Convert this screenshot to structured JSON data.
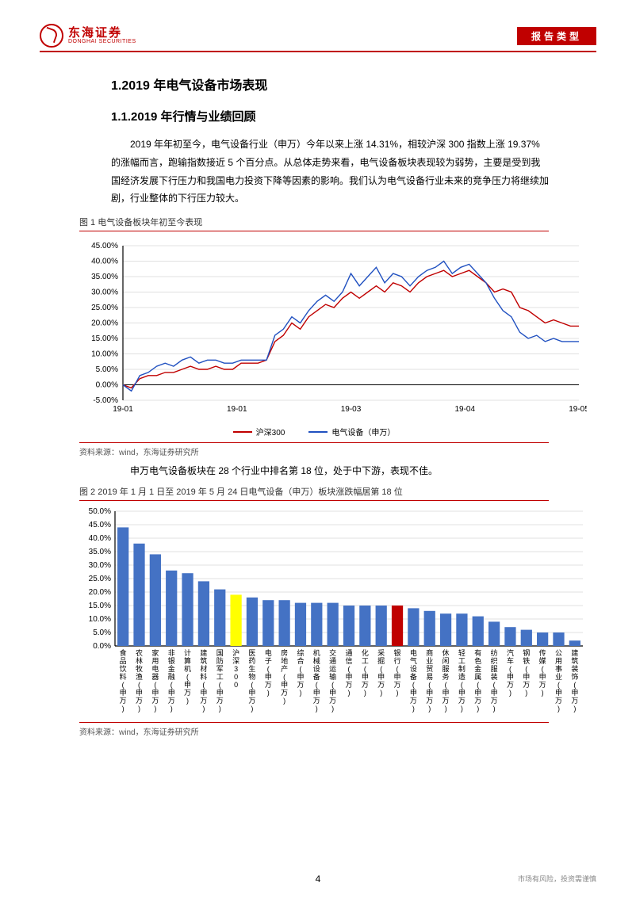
{
  "header": {
    "logo_cn": "东海证券",
    "logo_en": "DONGHAI SECURITIES",
    "report_type": "报告类型"
  },
  "section": {
    "h1": "1.2019 年电气设备市场表现",
    "h2": "1.1.2019 年行情与业绩回顾",
    "para1": "2019 年年初至今，电气设备行业（申万）今年以来上涨 14.31%，相较沪深 300 指数上涨 19.37%的涨幅而言，跑输指数接近 5 个百分点。从总体走势来看，电气设备板块表现较为弱势，主要是受到我国经济发展下行压力和我国电力投资下降等因素的影响。我们认为电气设备行业未来的竞争压力将继续加剧，行业整体的下行压力较大。"
  },
  "fig1": {
    "title": "图 1  电气设备板块年初至今表现",
    "source": "资料来源：wind，东海证券研究所",
    "type": "line",
    "xlabels": [
      "19-01",
      "19-01",
      "19-03",
      "19-04",
      "19-05"
    ],
    "ylim": [
      -5,
      45
    ],
    "ytick_step": 5,
    "ylabel_suffix": "%",
    "grid_color": "#e0e0e0",
    "background_color": "#ffffff",
    "series": [
      {
        "name": "沪深300",
        "color": "#c00000",
        "data": [
          0,
          -1,
          2,
          3,
          3,
          4,
          4,
          5,
          6,
          5,
          5,
          6,
          5,
          5,
          7,
          7,
          7,
          8,
          14,
          16,
          20,
          18,
          22,
          24,
          26,
          25,
          28,
          30,
          28,
          30,
          32,
          30,
          33,
          32,
          30,
          33,
          35,
          36,
          37,
          35,
          36,
          37,
          35,
          33,
          30,
          31,
          30,
          25,
          24,
          22,
          20,
          21,
          20,
          19,
          19
        ]
      },
      {
        "name": "电气设备（申万）",
        "color": "#2050c0",
        "data": [
          0,
          -2,
          3,
          4,
          6,
          7,
          6,
          8,
          9,
          7,
          8,
          8,
          7,
          7,
          8,
          8,
          8,
          8,
          16,
          18,
          22,
          20,
          24,
          27,
          29,
          27,
          30,
          36,
          32,
          35,
          38,
          33,
          36,
          35,
          32,
          35,
          37,
          38,
          40,
          36,
          38,
          39,
          36,
          33,
          28,
          24,
          22,
          17,
          15,
          16,
          14,
          15,
          14,
          14,
          14
        ]
      }
    ]
  },
  "midtext": "申万电气设备板块在 28 个行业中排名第 18 位，处于中下游，表现不佳。",
  "fig2": {
    "title": "图 2  2019 年 1 月 1 日至 2019 年 5 月 24 日电气设备（申万）板块涨跌幅居第 18 位",
    "source": "资料来源：wind，东海证券研究所",
    "type": "bar",
    "ylim": [
      0,
      50
    ],
    "ytick_step": 5,
    "ylabel_suffix": "%",
    "default_color": "#4472c4",
    "highlight_colors": {
      "7": "#ffff00",
      "17": "#c00000"
    },
    "grid_color": "#e0e0e0",
    "bars": [
      {
        "label": "食品饮料(申万)",
        "value": 44
      },
      {
        "label": "农林牧渔(申万)",
        "value": 38
      },
      {
        "label": "家用电器(申万)",
        "value": 34
      },
      {
        "label": "非银金融(申万)",
        "value": 28
      },
      {
        "label": "计算机(申万)",
        "value": 27
      },
      {
        "label": "建筑材料(申万)",
        "value": 24
      },
      {
        "label": "国防军工(申万)",
        "value": 21
      },
      {
        "label": "沪深300",
        "value": 19
      },
      {
        "label": "医药生物(申万)",
        "value": 18
      },
      {
        "label": "电子(申万)",
        "value": 17
      },
      {
        "label": "房地产(申万)",
        "value": 17
      },
      {
        "label": "综合(申万)",
        "value": 16
      },
      {
        "label": "机械设备(申万)",
        "value": 16
      },
      {
        "label": "交通运输(申万)",
        "value": 16
      },
      {
        "label": "通信(申万)",
        "value": 15
      },
      {
        "label": "化工(申万)",
        "value": 15
      },
      {
        "label": "采掘(申万)",
        "value": 15
      },
      {
        "label": "银行(申万)",
        "value": 15
      },
      {
        "label": "电气设备(申万)",
        "value": 14
      },
      {
        "label": "商业贸易(申万)",
        "value": 13
      },
      {
        "label": "休闲服务(申万)",
        "value": 12
      },
      {
        "label": "轻工制造(申万)",
        "value": 12
      },
      {
        "label": "有色金属(申万)",
        "value": 11
      },
      {
        "label": "纺织服装(申万)",
        "value": 9
      },
      {
        "label": "汽车(申万)",
        "value": 7
      },
      {
        "label": "钢铁(申万)",
        "value": 6
      },
      {
        "label": "传媒(申万)",
        "value": 5
      },
      {
        "label": "公用事业(申万)",
        "value": 5
      },
      {
        "label": "建筑装饰(申万)",
        "value": 2
      }
    ]
  },
  "footer": {
    "page": "4",
    "disclaimer": "市场有风险，投资需谨慎"
  }
}
